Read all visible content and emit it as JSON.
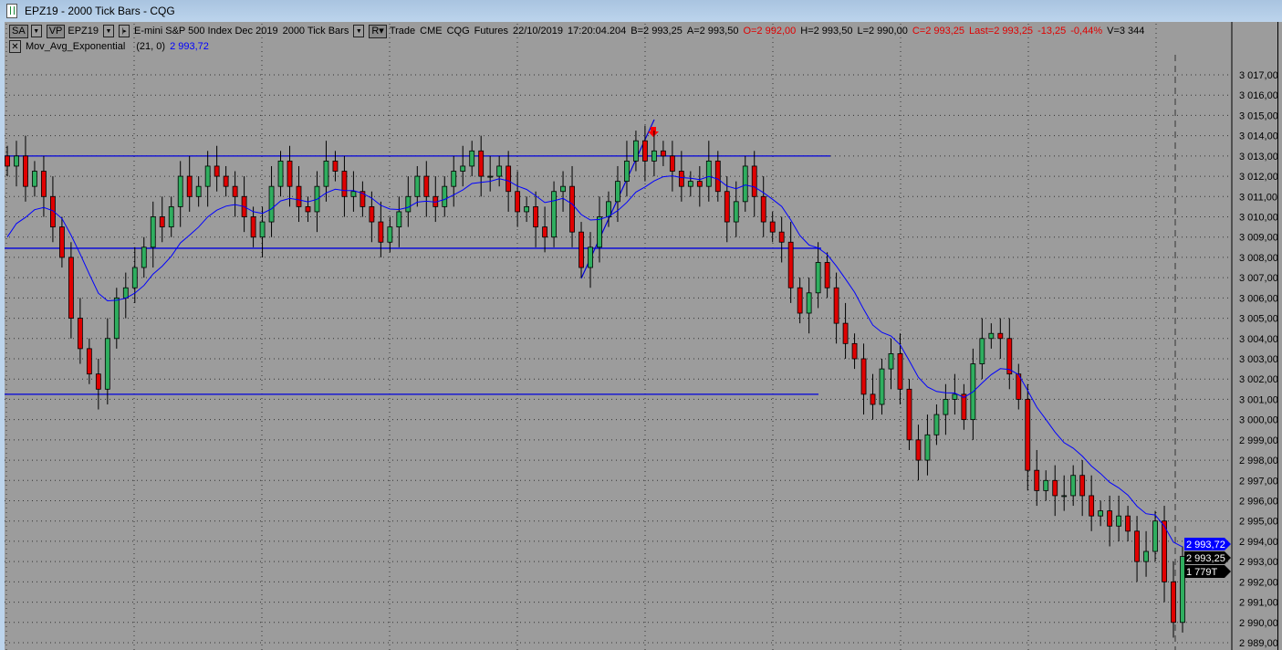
{
  "window": {
    "title": "EPZ19 - 2000 Tick Bars - CQG"
  },
  "header": {
    "sa_button": "SA",
    "vp_button": "VP",
    "symbol": "EPZ19",
    "r_button": "R",
    "description": "E-mini S&P 500 Index Dec 2019",
    "bar_type": "2000 Tick Bars",
    "trade": "Trade",
    "exchange": "CME",
    "source": "CQG",
    "market": "Futures",
    "date": "22/10/2019",
    "time": "17:20:04.204",
    "bid": "B=2 993,25",
    "ask": "A=2 993,50",
    "open": "O=2 992,00",
    "high": "H=2 993,50",
    "low": "L=2 990,00",
    "close": "C=2 993,25",
    "last": "Last=2 993,25",
    "change": "-13,25",
    "change_pct": "-0,44%",
    "volume": "V=3 344"
  },
  "study": {
    "name": "Mov_Avg_Exponential",
    "params": "(21,  0)",
    "value": "2 993,72",
    "close_icon": "close-x-icon"
  },
  "colors": {
    "up": "#2fae5f",
    "down": "#e00000",
    "ema": "#0000ff",
    "lines": "#0000dd",
    "background": "#9c9c9c"
  },
  "chart_data": {
    "type": "candlestick",
    "yticks": [
      "3 017,00",
      "3 016,00",
      "3 015,00",
      "3 014,00",
      "3 013,00",
      "3 012,00",
      "3 011,00",
      "3 010,00",
      "3 009,00",
      "3 008,00",
      "3 007,00",
      "3 006,00",
      "3 005,00",
      "3 004,00",
      "3 003,00",
      "3 002,00",
      "3 001,00",
      "3 000,00",
      "2 999,00",
      "2 998,00",
      "2 997,00",
      "2 996,00",
      "2 995,00",
      "2 994,00",
      "2 993,00",
      "2 992,00",
      "2 991,00",
      "2 990,00",
      "2 989,00"
    ],
    "ylim": [
      2988.8,
      3017.4
    ],
    "closes": [
      3012.5,
      3013,
      3011.5,
      3012.25,
      3011,
      3009.5,
      3008,
      3005,
      3003.5,
      3002.25,
      3001.5,
      3004,
      3006,
      3006.5,
      3007.5,
      3008.5,
      3010,
      3009.5,
      3010.5,
      3012,
      3011,
      3011.5,
      3012.5,
      3012,
      3011.5,
      3011,
      3010,
      3009,
      3009.75,
      3011.5,
      3012.75,
      3011.5,
      3010.5,
      3010.25,
      3011.5,
      3012.75,
      3012.25,
      3011,
      3011.25,
      3010.5,
      3009.75,
      3008.75,
      3009.5,
      3010.25,
      3011,
      3012,
      3011,
      3010.5,
      3011.5,
      3012.25,
      3012.5,
      3013.25,
      3012,
      3012,
      3012.5,
      3011.25,
      3010.25,
      3010.5,
      3009.5,
      3009,
      3011.25,
      3011.5,
      3009.25,
      3007.5,
      3008.5,
      3010,
      3010.75,
      3011.75,
      3012.75,
      3013.75,
      3012.75,
      3013.25,
      3013,
      3012.25,
      3011.5,
      3011.75,
      3011.5,
      3012.75,
      3011.25,
      3009.75,
      3010.75,
      3012.5,
      3011,
      3009.75,
      3009.25,
      3008.75,
      3006.5,
      3005.25,
      3006.25,
      3007.75,
      3006.5,
      3004.75,
      3003.75,
      3003,
      3001.25,
      3000.75,
      3002.5,
      3003.25,
      3001.5,
      2999,
      2998,
      2999.25,
      3000.25,
      3001,
      3001.25,
      3000,
      3002.75,
      3004,
      3004.25,
      3004,
      3002.25,
      3001,
      2997.5,
      2996.5,
      2997,
      2996.25,
      2996.25,
      2997.25,
      2996.25,
      2995.25,
      2995.5,
      2994.75,
      2995.25,
      2994.5,
      2993,
      2993.5,
      2995,
      2992,
      2990,
      2993.25
    ],
    "horizontal_lines": [
      3013.0,
      3008.45,
      3001.25
    ],
    "ema_value": 2993.72,
    "last_price": "2 993,25",
    "ema_tag": "2 993,72",
    "time_remaining": "1 779T"
  }
}
